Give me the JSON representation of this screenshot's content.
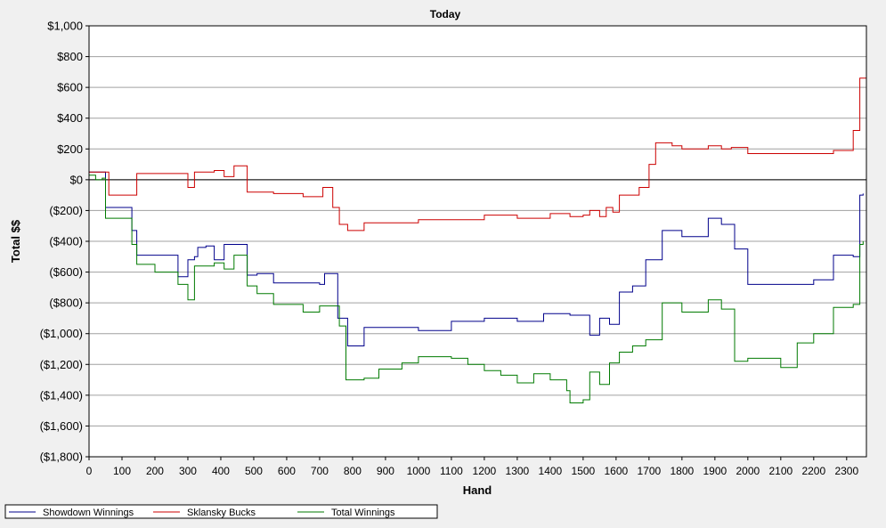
{
  "chart_data": {
    "type": "line",
    "title": "Today",
    "xlabel": "Hand",
    "ylabel": "Total $$",
    "xlim": [
      0,
      2360
    ],
    "ylim": [
      -1800,
      1000
    ],
    "x_ticks": [
      0,
      100,
      200,
      300,
      400,
      500,
      600,
      700,
      800,
      900,
      1000,
      1100,
      1200,
      1300,
      1400,
      1500,
      1600,
      1700,
      1800,
      1900,
      2000,
      2100,
      2200,
      2300
    ],
    "x_tick_labels": [
      "0",
      "100",
      "200",
      "300",
      "400",
      "500",
      "600",
      "700",
      "800",
      "900",
      "1000",
      "1100",
      "1200",
      "1300",
      "1400",
      "1500",
      "1600",
      "1700",
      "1800",
      "1900",
      "2000",
      "2100",
      "2200",
      "2300"
    ],
    "y_ticks": [
      1000,
      800,
      600,
      400,
      200,
      0,
      -200,
      -400,
      -600,
      -800,
      -1000,
      -1200,
      -1400,
      -1600,
      -1800
    ],
    "y_tick_labels": [
      "$1,000",
      "$800",
      "$600",
      "$400",
      "$200",
      "$0",
      "($200)",
      "($400)",
      "($600)",
      "($800)",
      "($1,000)",
      "($1,200)",
      "($1,400)",
      "($1,600)",
      "($1,800)"
    ],
    "grid": true,
    "legend_position": "bottom-left",
    "series": [
      {
        "name": "Showdown Winnings",
        "color": "#00008b",
        "x": [
          0,
          40,
          50,
          120,
          130,
          145,
          270,
          300,
          320,
          330,
          355,
          380,
          410,
          440,
          480,
          510,
          560,
          700,
          715,
          755,
          785,
          835,
          1000,
          1100,
          1200,
          1300,
          1380,
          1460,
          1520,
          1550,
          1580,
          1610,
          1650,
          1690,
          1740,
          1800,
          1880,
          1920,
          1960,
          2000,
          2200,
          2260,
          2320,
          2340,
          2350
        ],
        "y": [
          50,
          50,
          -180,
          -180,
          -330,
          -490,
          -630,
          -520,
          -500,
          -440,
          -430,
          -520,
          -420,
          -420,
          -620,
          -610,
          -670,
          -680,
          -610,
          -900,
          -1080,
          -960,
          -980,
          -920,
          -900,
          -920,
          -870,
          -880,
          -1010,
          -900,
          -940,
          -730,
          -690,
          -520,
          -330,
          -370,
          -250,
          -290,
          -450,
          -680,
          -650,
          -490,
          -500,
          -100,
          -90
        ]
      },
      {
        "name": "Sklansky Bucks",
        "color": "#cc0000",
        "x": [
          0,
          40,
          60,
          120,
          145,
          270,
          300,
          320,
          380,
          410,
          440,
          480,
          560,
          650,
          710,
          740,
          760,
          785,
          835,
          1000,
          1200,
          1300,
          1400,
          1460,
          1500,
          1520,
          1550,
          1570,
          1590,
          1610,
          1670,
          1700,
          1720,
          1770,
          1800,
          1880,
          1920,
          1950,
          2000,
          2100,
          2200,
          2260,
          2320,
          2340,
          2360
        ],
        "y": [
          50,
          50,
          -100,
          -100,
          40,
          40,
          -50,
          50,
          60,
          20,
          90,
          -80,
          -90,
          -110,
          -50,
          -180,
          -290,
          -330,
          -280,
          -260,
          -230,
          -250,
          -220,
          -240,
          -230,
          -200,
          -240,
          -180,
          -210,
          -100,
          -50,
          100,
          240,
          220,
          200,
          220,
          200,
          210,
          170,
          170,
          170,
          190,
          320,
          660,
          720
        ]
      },
      {
        "name": "Total Winnings",
        "color": "#007a00",
        "x": [
          0,
          20,
          40,
          50,
          120,
          130,
          145,
          200,
          270,
          300,
          320,
          380,
          410,
          440,
          480,
          510,
          560,
          650,
          700,
          760,
          780,
          835,
          880,
          950,
          1000,
          1100,
          1150,
          1200,
          1250,
          1300,
          1350,
          1400,
          1450,
          1460,
          1500,
          1520,
          1550,
          1580,
          1610,
          1650,
          1690,
          1740,
          1800,
          1880,
          1920,
          1960,
          2000,
          2100,
          2150,
          2200,
          2260,
          2320,
          2340,
          2350
        ],
        "y": [
          30,
          0,
          10,
          -250,
          -250,
          -420,
          -550,
          -600,
          -680,
          -780,
          -560,
          -540,
          -580,
          -490,
          -690,
          -740,
          -810,
          -860,
          -820,
          -950,
          -1300,
          -1290,
          -1230,
          -1190,
          -1150,
          -1160,
          -1200,
          -1240,
          -1270,
          -1320,
          -1260,
          -1300,
          -1370,
          -1450,
          -1430,
          -1250,
          -1330,
          -1190,
          -1120,
          -1080,
          -1040,
          -800,
          -860,
          -780,
          -840,
          -1180,
          -1160,
          -1220,
          -1060,
          -1000,
          -830,
          -810,
          -420,
          -400
        ]
      }
    ]
  }
}
